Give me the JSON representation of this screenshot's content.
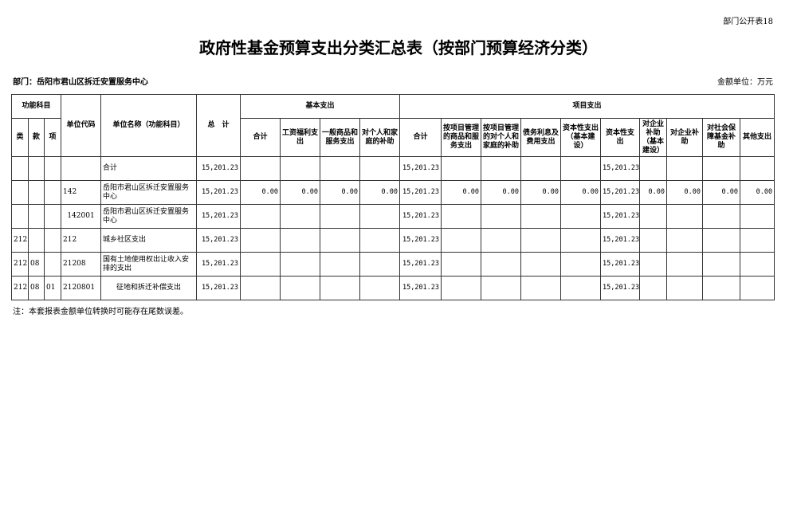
{
  "corner_label": "部门公开表18",
  "title": "政府性基金预算支出分类汇总表（按部门预算经济分类）",
  "department": "部门：岳阳市君山区拆迁安置服务中心",
  "unit": "金额单位：万元",
  "headers": {
    "func_subject": "功能科目",
    "lei": "类",
    "kuan": "款",
    "xiang": "项",
    "unit_code": "单位代码",
    "unit_name": "单位名称（功能科目）",
    "total": "总　计",
    "basic": "基本支出",
    "project": "项目支出",
    "basic_cols": [
      "合计",
      "工资福利支出",
      "一般商品和服务支出",
      "对个人和家庭的补助"
    ],
    "project_cols": [
      "合计",
      "按项目管理的商品和服务支出",
      "按项目管理的对个人和家庭的补助",
      "债务利息及费用支出",
      "资本性支出（基本建设）",
      "资本性支出",
      "对企业补助（基本建设）",
      "对企业补助",
      "对社会保障基金补助",
      "其他支出"
    ]
  },
  "rows": [
    {
      "lei": "",
      "kuan": "",
      "xiang": "",
      "code": "",
      "name": "合计",
      "total": "15,201.23",
      "basic": [
        "",
        "",
        "",
        ""
      ],
      "project": [
        "15,201.23",
        "",
        "",
        "",
        "",
        "15,201.23",
        "",
        "",
        "",
        ""
      ]
    },
    {
      "lei": "",
      "kuan": "",
      "xiang": "",
      "code": "142",
      "name": "岳阳市君山区拆迁安置服务中心",
      "total": "15,201.23",
      "basic": [
        "0.00",
        "0.00",
        "0.00",
        "0.00"
      ],
      "project": [
        "15,201.23",
        "0.00",
        "0.00",
        "0.00",
        "0.00",
        "15,201.23",
        "0.00",
        "0.00",
        "0.00",
        "0.00"
      ]
    },
    {
      "lei": "",
      "kuan": "",
      "xiang": "",
      "code": "142001",
      "name": "岳阳市君山区拆迁安置服务中心",
      "total": "15,201.23",
      "basic": [
        "",
        "",
        "",
        ""
      ],
      "project": [
        "15,201.23",
        "",
        "",
        "",
        "",
        "15,201.23",
        "",
        "",
        "",
        ""
      ]
    },
    {
      "lei": "212",
      "kuan": "",
      "xiang": "",
      "code": "212",
      "name": "城乡社区支出",
      "total": "15,201.23",
      "basic": [
        "",
        "",
        "",
        ""
      ],
      "project": [
        "15,201.23",
        "",
        "",
        "",
        "",
        "15,201.23",
        "",
        "",
        "",
        ""
      ]
    },
    {
      "lei": "212",
      "kuan": "08",
      "xiang": "",
      "code": "21208",
      "name": "国有土地使用权出让收入安排的支出",
      "total": "15,201.23",
      "basic": [
        "",
        "",
        "",
        ""
      ],
      "project": [
        "15,201.23",
        "",
        "",
        "",
        "",
        "15,201.23",
        "",
        "",
        "",
        ""
      ]
    },
    {
      "lei": "212",
      "kuan": "08",
      "xiang": "01",
      "code": "2120801",
      "name": "征地和拆迁补偿支出",
      "total": "15,201.23",
      "basic": [
        "",
        "",
        "",
        ""
      ],
      "project": [
        "15,201.23",
        "",
        "",
        "",
        "",
        "15,201.23",
        "",
        "",
        "",
        ""
      ]
    }
  ],
  "note": "注：本套报表金额单位转换时可能存在尾数误差。"
}
